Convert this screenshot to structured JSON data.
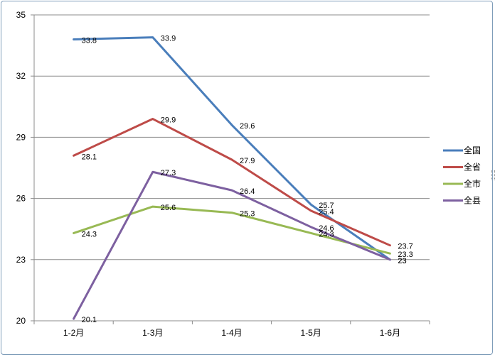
{
  "chart_data": {
    "type": "line",
    "categories": [
      "1-2月",
      "1-3月",
      "1-4月",
      "1-5月",
      "1-6月"
    ],
    "ylim": [
      20,
      35
    ],
    "yticks": [
      20,
      23,
      26,
      29,
      32,
      35
    ],
    "grid": true,
    "legend_position": "right",
    "series": [
      {
        "name": "全国",
        "color": "#4a7ebb",
        "values": [
          33.8,
          33.9,
          29.6,
          25.7,
          23
        ]
      },
      {
        "name": "全省",
        "color": "#be4b48",
        "values": [
          28.1,
          29.9,
          27.9,
          25.4,
          23.7
        ]
      },
      {
        "name": "全市",
        "color": "#98b954",
        "values": [
          24.3,
          25.6,
          25.3,
          24.3,
          23.3
        ]
      },
      {
        "name": "全县",
        "color": "#7d60a0",
        "values": [
          20.1,
          27.3,
          26.4,
          24.6,
          23
        ]
      }
    ]
  }
}
